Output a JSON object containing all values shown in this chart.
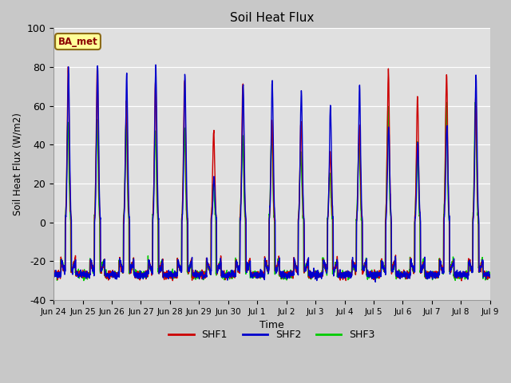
{
  "title": "Soil Heat Flux",
  "ylabel": "Soil Heat Flux (W/m2)",
  "xlabel": "Time",
  "ylim": [
    -40,
    100
  ],
  "annotation": "BA_met",
  "fig_facecolor": "#c8c8c8",
  "plot_facecolor": "#e0e0e0",
  "legend_entries": [
    "SHF1",
    "SHF2",
    "SHF3"
  ],
  "line_colors": [
    "#cc0000",
    "#0000cc",
    "#00cc00"
  ],
  "tick_labels": [
    "Jun 24",
    "Jun 25",
    "Jun 26",
    "Jun 27",
    "Jun 28",
    "Jun 29",
    "Jun 30",
    "Jul 1",
    "Jul 2",
    "Jul 3",
    "Jul 4",
    "Jul 5",
    "Jul 6",
    "Jul 7",
    "Jul 8",
    "Jul 9"
  ],
  "yticks": [
    -40,
    -20,
    0,
    20,
    40,
    60,
    80,
    100
  ],
  "grid_color": "#ffffff",
  "n_days": 15
}
